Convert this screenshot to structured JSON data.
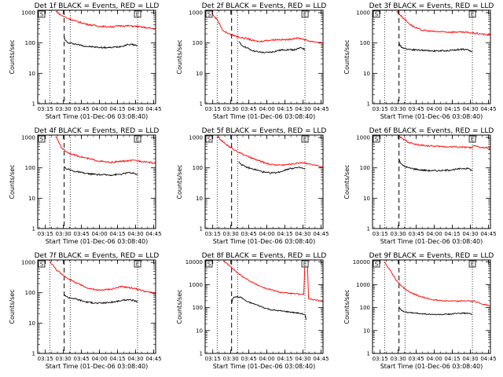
{
  "chart_data": [
    {
      "type": "line",
      "title": "Det 1f BLACK = Events, RED = LLD",
      "xlabel": "Start Time (01-Dec-06 03:08:40)",
      "ylabel": "Counts/sec",
      "x_ticks": [
        "03:15",
        "03:30",
        "03:45",
        "04:00",
        "04:15",
        "04:30",
        "04:45"
      ],
      "y_ticks": [
        "1",
        "10",
        "100",
        "1000"
      ],
      "yscale": "log",
      "ylim": [
        1,
        1200
      ],
      "xlim_minutes": [
        0,
        98
      ],
      "vlines_dotted": [
        10,
        27,
        83
      ],
      "vline_dashed": 22,
      "boxes": [
        "S",
        "E"
      ],
      "series": [
        {
          "color": "#000000",
          "x": [
            22,
            23,
            25,
            30,
            40,
            50,
            60,
            70,
            75,
            80,
            83
          ],
          "y": [
            160,
            120,
            100,
            95,
            78,
            72,
            70,
            78,
            90,
            88,
            80
          ]
        },
        {
          "color": "#ff0000",
          "x": [
            15,
            20,
            25,
            30,
            40,
            50,
            60,
            70,
            80,
            90,
            98
          ],
          "y": [
            1100,
            800,
            650,
            550,
            420,
            360,
            340,
            370,
            360,
            320,
            290
          ]
        }
      ]
    },
    {
      "type": "line",
      "title": "Det 2f BLACK = Events, RED = LLD",
      "xlabel": "Start Time (01-Dec-06 03:08:40)",
      "ylabel": "Counts/sec",
      "x_ticks": [
        "03:15",
        "03:30",
        "03:45",
        "04:00",
        "04:15",
        "04:30",
        "04:45"
      ],
      "y_ticks": [
        "1",
        "10",
        "100",
        "1000"
      ],
      "yscale": "log",
      "ylim": [
        1,
        1200
      ],
      "xlim_minutes": [
        0,
        98
      ],
      "vlines_dotted": [
        10,
        27,
        83
      ],
      "vline_dashed": 22,
      "boxes": [
        "S",
        "E"
      ],
      "series": [
        {
          "color": "#000000",
          "x": [
            28,
            30,
            33,
            36,
            40,
            45,
            50,
            55,
            60,
            65,
            70,
            75,
            80,
            83
          ],
          "y": [
            110,
            85,
            75,
            65,
            55,
            50,
            48,
            50,
            55,
            60,
            60,
            60,
            70,
            60
          ]
        },
        {
          "color": "#ff0000",
          "x": [
            5,
            8,
            10,
            15,
            20,
            25,
            30,
            35,
            40,
            45,
            50,
            55,
            60,
            65,
            70,
            75,
            80,
            85,
            90,
            95,
            98
          ],
          "y": [
            1100,
            700,
            600,
            250,
            200,
            170,
            150,
            140,
            120,
            110,
            120,
            125,
            130,
            128,
            130,
            145,
            140,
            120,
            110,
            105,
            100
          ]
        }
      ]
    },
    {
      "type": "line",
      "title": "Det 3f BLACK = Events, RED = LLD",
      "xlabel": "Start Time (01-Dec-06 03:08:40)",
      "ylabel": "Counts/sec",
      "x_ticks": [
        "03:15",
        "03:30",
        "03:45",
        "04:00",
        "04:15",
        "04:30",
        "04:45"
      ],
      "y_ticks": [
        "1",
        "10",
        "100",
        "1000"
      ],
      "yscale": "log",
      "ylim": [
        1,
        1200
      ],
      "xlim_minutes": [
        0,
        98
      ],
      "vlines_dotted": [
        10,
        27,
        83
      ],
      "vline_dashed": 22,
      "boxes": [
        "S",
        "E"
      ],
      "series": [
        {
          "color": "#000000",
          "x": [
            22,
            23,
            25,
            30,
            40,
            50,
            60,
            70,
            75,
            80,
            83
          ],
          "y": [
            100,
            80,
            70,
            62,
            58,
            55,
            55,
            60,
            62,
            58,
            50
          ]
        },
        {
          "color": "#ff0000",
          "x": [
            20,
            25,
            30,
            35,
            40,
            50,
            60,
            70,
            80,
            90,
            98
          ],
          "y": [
            1100,
            700,
            450,
            330,
            270,
            240,
            230,
            230,
            220,
            200,
            180
          ]
        }
      ]
    },
    {
      "type": "line",
      "title": "Det 4f BLACK = Events, RED = LLD",
      "xlabel": "Start Time (01-Dec-06 03:08:40)",
      "ylabel": "Counts/sec",
      "x_ticks": [
        "03:15",
        "03:30",
        "03:45",
        "04:00",
        "04:15",
        "04:30",
        "04:45"
      ],
      "y_ticks": [
        "1",
        "10",
        "100",
        "1000"
      ],
      "yscale": "log",
      "ylim": [
        1,
        1200
      ],
      "xlim_minutes": [
        0,
        98
      ],
      "vlines_dotted": [
        10,
        27,
        83
      ],
      "vline_dashed": 22,
      "boxes": [
        "S",
        "E"
      ],
      "series": [
        {
          "color": "#000000",
          "x": [
            22,
            23,
            25,
            30,
            40,
            50,
            60,
            70,
            75,
            80,
            83
          ],
          "y": [
            110,
            100,
            90,
            78,
            65,
            60,
            58,
            62,
            70,
            65,
            60
          ]
        },
        {
          "color": "#ff0000",
          "x": [
            15,
            20,
            25,
            30,
            40,
            50,
            60,
            70,
            80,
            90,
            98
          ],
          "y": [
            1100,
            450,
            320,
            270,
            210,
            170,
            150,
            165,
            175,
            160,
            140
          ]
        }
      ]
    },
    {
      "type": "line",
      "title": "Det 5f BLACK = Events, RED = LLD",
      "xlabel": "Start Time (01-Dec-06 03:08:40)",
      "ylabel": "Counts/sec",
      "x_ticks": [
        "03:15",
        "03:30",
        "03:45",
        "04:00",
        "04:15",
        "04:30",
        "04:45"
      ],
      "y_ticks": [
        "1",
        "10",
        "100",
        "1000"
      ],
      "yscale": "log",
      "ylim": [
        1,
        1200
      ],
      "xlim_minutes": [
        0,
        98
      ],
      "vlines_dotted": [
        10,
        27,
        83
      ],
      "vline_dashed": 22,
      "boxes": [
        "S",
        "E"
      ],
      "series": [
        {
          "color": "#000000",
          "x": [
            28,
            30,
            33,
            38,
            45,
            50,
            55,
            60,
            65,
            70,
            75,
            80,
            83
          ],
          "y": [
            160,
            130,
            110,
            95,
            80,
            70,
            68,
            70,
            80,
            95,
            100,
            100,
            90
          ]
        },
        {
          "color": "#ff0000",
          "x": [
            10,
            15,
            20,
            25,
            30,
            35,
            40,
            45,
            50,
            55,
            60,
            65,
            70,
            75,
            80,
            85,
            90,
            95,
            98
          ],
          "y": [
            1100,
            700,
            500,
            380,
            300,
            240,
            200,
            170,
            145,
            130,
            125,
            125,
            130,
            140,
            150,
            140,
            125,
            110,
            100
          ]
        }
      ]
    },
    {
      "type": "line",
      "title": "Det 6f BLACK = Events, RED = LLD",
      "xlabel": "Start Time (01-Dec-06 03:08:40)",
      "ylabel": "Counts/sec",
      "x_ticks": [
        "03:15",
        "03:30",
        "03:45",
        "04:00",
        "04:15",
        "04:30",
        "04:45"
      ],
      "y_ticks": [
        "1",
        "10",
        "100",
        "1000"
      ],
      "yscale": "log",
      "ylim": [
        1,
        1200
      ],
      "xlim_minutes": [
        0,
        98
      ],
      "vlines_dotted": [
        10,
        27,
        83
      ],
      "vline_dashed": 22,
      "boxes": [
        "S",
        "E"
      ],
      "series": [
        {
          "color": "#000000",
          "x": [
            22,
            23,
            25,
            30,
            40,
            50,
            60,
            70,
            75,
            80,
            83
          ],
          "y": [
            200,
            150,
            120,
            100,
            85,
            80,
            82,
            90,
            95,
            95,
            80
          ]
        },
        {
          "color": "#ff0000",
          "x": [
            22,
            25,
            30,
            35,
            40,
            50,
            60,
            70,
            80,
            83,
            84,
            90,
            98
          ],
          "y": [
            1100,
            900,
            700,
            600,
            560,
            520,
            500,
            490,
            470,
            460,
            530,
            470,
            450
          ]
        }
      ]
    },
    {
      "type": "line",
      "title": "Det 7f BLACK = Events, RED = LLD",
      "xlabel": "Start Time (01-Dec-06 03:08:40)",
      "ylabel": "Counts/sec",
      "x_ticks": [
        "03:15",
        "03:30",
        "03:45",
        "04:00",
        "04:15",
        "04:30",
        "04:45"
      ],
      "y_ticks": [
        "1",
        "10",
        "100",
        "1000"
      ],
      "yscale": "log",
      "ylim": [
        1,
        1200
      ],
      "xlim_minutes": [
        0,
        98
      ],
      "vlines_dotted": [
        10,
        27,
        83
      ],
      "vline_dashed": 22,
      "boxes": [
        "S",
        "E"
      ],
      "series": [
        {
          "color": "#000000",
          "x": [
            22,
            23,
            25,
            30,
            40,
            50,
            60,
            70,
            75,
            80,
            83
          ],
          "y": [
            90,
            80,
            70,
            65,
            50,
            45,
            48,
            55,
            60,
            55,
            50
          ]
        },
        {
          "color": "#ff0000",
          "x": [
            10,
            15,
            20,
            25,
            30,
            40,
            50,
            60,
            70,
            80,
            90,
            98
          ],
          "y": [
            1100,
            600,
            400,
            300,
            230,
            150,
            120,
            130,
            160,
            140,
            110,
            95
          ]
        }
      ]
    },
    {
      "type": "line",
      "title": "Det 8f BLACK = Events, RED = LLD",
      "xlabel": "Start Time (01-Dec-06 03:08:40)",
      "ylabel": "Counts/sec",
      "x_ticks": [
        "03:15",
        "03:30",
        "03:45",
        "04:00",
        "04:15",
        "04:30",
        "04:45"
      ],
      "y_ticks": [
        "1",
        "10",
        "100",
        "1000",
        "10000"
      ],
      "yscale": "log",
      "ylim": [
        1,
        12000
      ],
      "xlim_minutes": [
        0,
        98
      ],
      "vlines_dotted": [
        10,
        27,
        83
      ],
      "vline_dashed": 22,
      "boxes": [
        "S",
        "E"
      ],
      "series": [
        {
          "color": "#000000",
          "x": [
            22,
            23,
            25,
            30,
            35,
            40,
            45,
            50,
            55,
            60,
            65,
            70,
            75,
            80,
            83,
            84
          ],
          "y": [
            150,
            250,
            300,
            280,
            180,
            150,
            120,
            95,
            80,
            75,
            70,
            65,
            60,
            55,
            50,
            30
          ]
        },
        {
          "color": "#ff0000",
          "x": [
            15,
            20,
            25,
            30,
            35,
            40,
            45,
            50,
            55,
            60,
            65,
            70,
            75,
            80,
            82,
            83,
            84,
            85,
            86,
            88,
            90,
            95,
            98
          ],
          "y": [
            11000,
            7000,
            4000,
            2500,
            1700,
            1200,
            900,
            700,
            600,
            500,
            450,
            420,
            400,
            380,
            380,
            10000,
            10000,
            10000,
            250,
            230,
            220,
            200,
            190
          ]
        }
      ]
    },
    {
      "type": "line",
      "title": "Det 9f BLACK = Events, RED = LLD",
      "xlabel": "Start Time (01-Dec-06 03:08:40)",
      "ylabel": "Counts/sec",
      "x_ticks": [
        "03:15",
        "03:30",
        "03:45",
        "04:00",
        "04:15",
        "04:30",
        "04:45"
      ],
      "y_ticks": [
        "1",
        "10",
        "100",
        "1000",
        "10000"
      ],
      "yscale": "log",
      "ylim": [
        1,
        12000
      ],
      "xlim_minutes": [
        0,
        98
      ],
      "vlines_dotted": [
        10,
        27,
        83
      ],
      "vline_dashed": 22,
      "boxes": [
        "S",
        "E"
      ],
      "series": [
        {
          "color": "#000000",
          "x": [
            22,
            23,
            25,
            30,
            40,
            50,
            60,
            70,
            75,
            80,
            83
          ],
          "y": [
            110,
            90,
            70,
            60,
            55,
            50,
            50,
            55,
            58,
            55,
            50
          ]
        },
        {
          "color": "#ff0000",
          "x": [
            10,
            15,
            20,
            25,
            30,
            40,
            50,
            60,
            70,
            80,
            83,
            84,
            90,
            98
          ],
          "y": [
            10000,
            4000,
            1500,
            800,
            500,
            300,
            220,
            200,
            190,
            200,
            180,
            200,
            150,
            120
          ]
        }
      ]
    }
  ]
}
